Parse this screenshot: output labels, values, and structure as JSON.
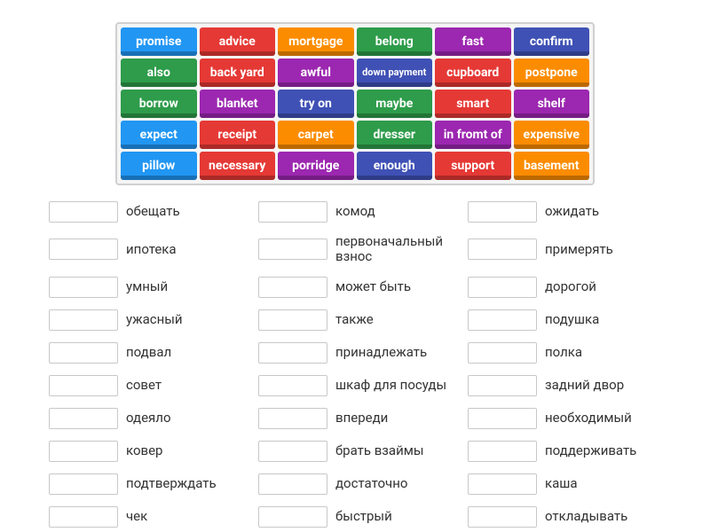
{
  "colors": {
    "blue": "#2196f3",
    "red": "#e53935",
    "orange": "#fb8c00",
    "green": "#2e9c4a",
    "purple": "#9c27b0",
    "indigo": "#3f51b5"
  },
  "word_bank": [
    {
      "label": "promise",
      "color": "blue",
      "small": false
    },
    {
      "label": "advice",
      "color": "red",
      "small": false
    },
    {
      "label": "mortgage",
      "color": "orange",
      "small": false
    },
    {
      "label": "belong",
      "color": "green",
      "small": false
    },
    {
      "label": "fast",
      "color": "purple",
      "small": false
    },
    {
      "label": "confirm",
      "color": "indigo",
      "small": false
    },
    {
      "label": "also",
      "color": "green",
      "small": false
    },
    {
      "label": "back yard",
      "color": "red",
      "small": false
    },
    {
      "label": "awful",
      "color": "purple",
      "small": false
    },
    {
      "label": "down payment",
      "color": "indigo",
      "small": true
    },
    {
      "label": "cupboard",
      "color": "red",
      "small": false
    },
    {
      "label": "postpone",
      "color": "orange",
      "small": false
    },
    {
      "label": "borrow",
      "color": "green",
      "small": false
    },
    {
      "label": "blanket",
      "color": "purple",
      "small": false
    },
    {
      "label": "try on",
      "color": "indigo",
      "small": false
    },
    {
      "label": "maybe",
      "color": "green",
      "small": false
    },
    {
      "label": "smart",
      "color": "red",
      "small": false
    },
    {
      "label": "shelf",
      "color": "purple",
      "small": false
    },
    {
      "label": "expect",
      "color": "blue",
      "small": false
    },
    {
      "label": "receipt",
      "color": "red",
      "small": false
    },
    {
      "label": "carpet",
      "color": "orange",
      "small": false
    },
    {
      "label": "dresser",
      "color": "green",
      "small": false
    },
    {
      "label": "in fromt of",
      "color": "purple",
      "small": false
    },
    {
      "label": "expensive",
      "color": "orange",
      "small": false
    },
    {
      "label": "pillow",
      "color": "blue",
      "small": false
    },
    {
      "label": "necessary",
      "color": "red",
      "small": false
    },
    {
      "label": "porridge",
      "color": "purple",
      "small": false
    },
    {
      "label": "enough",
      "color": "indigo",
      "small": false
    },
    {
      "label": "support",
      "color": "red",
      "small": false
    },
    {
      "label": "basement",
      "color": "orange",
      "small": false
    }
  ],
  "answers": {
    "col1": [
      "обещать",
      "ипотека",
      "умный",
      "ужасный",
      "подвал",
      "совет",
      "одеяло",
      "ковер",
      "подтверждать",
      "чек"
    ],
    "col2": [
      "комод",
      "первоначальный взнос",
      "может быть",
      "также",
      "принадлежать",
      "шкаф для посуды",
      "впереди",
      "брать взаймы",
      "достаточно",
      "быстрый"
    ],
    "col3": [
      "ожидать",
      "примерять",
      "дорогой",
      "подушка",
      "полка",
      "задний двор",
      "необходимый",
      "поддерживать",
      "каша",
      "откладывать"
    ]
  }
}
